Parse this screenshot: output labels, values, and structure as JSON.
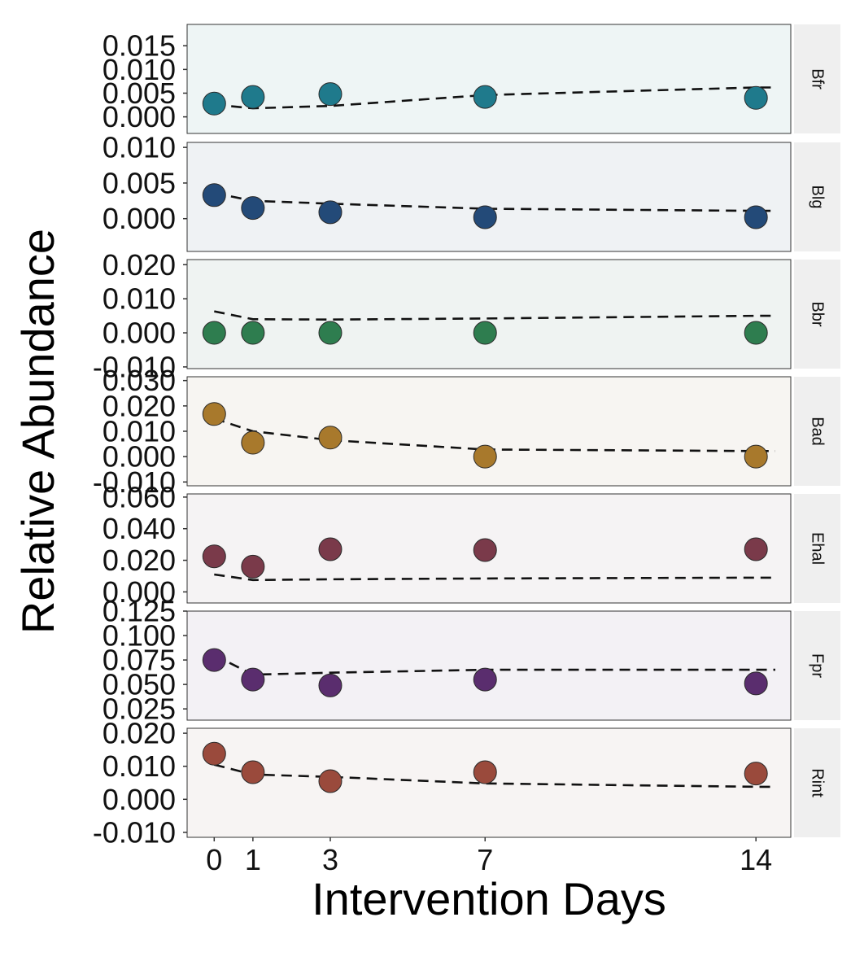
{
  "chart_data": {
    "type": "scatter",
    "xlabel": "Intervention Days",
    "ylabel": "Relative Abundance",
    "x_ticks": [
      0,
      1,
      3,
      7,
      14
    ],
    "xlim": [
      -0.7,
      14.9
    ],
    "grid": false,
    "fit_style": "dashed line",
    "panels": [
      {
        "label": "Bfr",
        "color": "#1f7a8c",
        "bg": "#eef5f5",
        "ylim": [
          -0.0035,
          0.0195
        ],
        "y_ticks": [
          0.0,
          0.005,
          0.01,
          0.015
        ],
        "y_tick_labels": [
          "0.000",
          "0.005",
          "0.010",
          "0.015"
        ],
        "points": [
          [
            0,
            0.0028
          ],
          [
            1,
            0.0042
          ],
          [
            3,
            0.0048
          ],
          [
            7,
            0.0042
          ],
          [
            14,
            0.004
          ]
        ],
        "fit": [
          [
            0,
            0.0026
          ],
          [
            1,
            0.0018
          ],
          [
            3,
            0.0023
          ],
          [
            7,
            0.0046
          ],
          [
            14,
            0.0062
          ],
          [
            14.5,
            0.0062
          ]
        ]
      },
      {
        "label": "Blg",
        "color": "#234a78",
        "bg": "#eff2f4",
        "ylim": [
          -0.0046,
          0.0107
        ],
        "y_ticks": [
          0.0,
          0.005,
          0.01
        ],
        "y_tick_labels": [
          "0.000",
          "0.005",
          "0.010"
        ],
        "points": [
          [
            0,
            0.0033
          ],
          [
            1,
            0.0015
          ],
          [
            3,
            0.0009
          ],
          [
            7,
            0.0002
          ],
          [
            14,
            0.0002
          ]
        ],
        "fit": [
          [
            0,
            0.0036
          ],
          [
            1,
            0.0025
          ],
          [
            3,
            0.0021
          ],
          [
            7,
            0.0014
          ],
          [
            14,
            0.0011
          ],
          [
            14.5,
            0.0011
          ]
        ]
      },
      {
        "label": "Bbr",
        "color": "#2e7d4f",
        "bg": "#eff3f2",
        "ylim": [
          -0.0105,
          0.0215
        ],
        "y_ticks": [
          -0.01,
          0.0,
          0.01,
          0.02
        ],
        "y_tick_labels": [
          "-0.010",
          "0.000",
          "0.010",
          "0.020"
        ],
        "points": [
          [
            0,
            0.0
          ],
          [
            1,
            0.0
          ],
          [
            3,
            0.0
          ],
          [
            7,
            0.0
          ],
          [
            14,
            0.0
          ]
        ],
        "fit": [
          [
            0,
            0.0063
          ],
          [
            1,
            0.004
          ],
          [
            3,
            0.0039
          ],
          [
            7,
            0.0042
          ],
          [
            14,
            0.005
          ],
          [
            14.5,
            0.005
          ]
        ]
      },
      {
        "label": "Bad",
        "color": "#a8792c",
        "bg": "#f7f5f2",
        "ylim": [
          -0.0115,
          0.0315
        ],
        "y_ticks": [
          -0.01,
          0.0,
          0.01,
          0.02,
          0.03
        ],
        "y_tick_labels": [
          "-0.010",
          "0.000",
          "0.010",
          "0.020",
          "0.030"
        ],
        "points": [
          [
            0,
            0.0168
          ],
          [
            1,
            0.0055
          ],
          [
            3,
            0.0075
          ],
          [
            7,
            0.0
          ],
          [
            14,
            0.0
          ]
        ],
        "fit": [
          [
            0,
            0.015
          ],
          [
            1,
            0.01
          ],
          [
            3,
            0.0065
          ],
          [
            7,
            0.0028
          ],
          [
            14,
            0.0022
          ],
          [
            14.5,
            0.0022
          ]
        ]
      },
      {
        "label": "Ehal",
        "color": "#7a3a4a",
        "bg": "#f5f3f4",
        "ylim": [
          -0.007,
          0.062
        ],
        "y_ticks": [
          0.0,
          0.02,
          0.04,
          0.06
        ],
        "y_tick_labels": [
          "0.000",
          "0.020",
          "0.040",
          "0.060"
        ],
        "points": [
          [
            0,
            0.0225
          ],
          [
            1,
            0.016
          ],
          [
            3,
            0.027
          ],
          [
            7,
            0.0265
          ],
          [
            14,
            0.027
          ]
        ],
        "fit": [
          [
            0,
            0.011
          ],
          [
            1,
            0.0075
          ],
          [
            3,
            0.008
          ],
          [
            7,
            0.0085
          ],
          [
            14,
            0.009
          ],
          [
            14.5,
            0.009
          ]
        ]
      },
      {
        "label": "Fpr",
        "color": "#5a2d6e",
        "bg": "#f3f1f5",
        "ylim": [
          0.0135,
          0.125
        ],
        "y_ticks": [
          0.025,
          0.05,
          0.075,
          0.1,
          0.125
        ],
        "y_tick_labels": [
          "0.025",
          "0.050",
          "0.075",
          "0.100",
          "0.125"
        ],
        "points": [
          [
            0,
            0.075
          ],
          [
            1,
            0.055
          ],
          [
            3,
            0.049
          ],
          [
            7,
            0.055
          ],
          [
            14,
            0.051
          ]
        ],
        "fit": [
          [
            0,
            0.08
          ],
          [
            1,
            0.06
          ],
          [
            3,
            0.062
          ],
          [
            7,
            0.065
          ],
          [
            14,
            0.065
          ],
          [
            14.5,
            0.065
          ]
        ]
      },
      {
        "label": "Rint",
        "color": "#9a4a3c",
        "bg": "#f7f4f3",
        "ylim": [
          -0.0115,
          0.0215
        ],
        "y_ticks": [
          -0.01,
          0.0,
          0.01,
          0.02
        ],
        "y_tick_labels": [
          "-0.010",
          "0.000",
          "0.010",
          "0.020"
        ],
        "points": [
          [
            0,
            0.0138
          ],
          [
            1,
            0.0082
          ],
          [
            3,
            0.0055
          ],
          [
            7,
            0.0082
          ],
          [
            14,
            0.0078
          ]
        ],
        "fit": [
          [
            0,
            0.0105
          ],
          [
            1,
            0.0075
          ],
          [
            3,
            0.0068
          ],
          [
            7,
            0.0048
          ],
          [
            14,
            0.0038
          ],
          [
            14.5,
            0.0038
          ]
        ]
      }
    ]
  }
}
